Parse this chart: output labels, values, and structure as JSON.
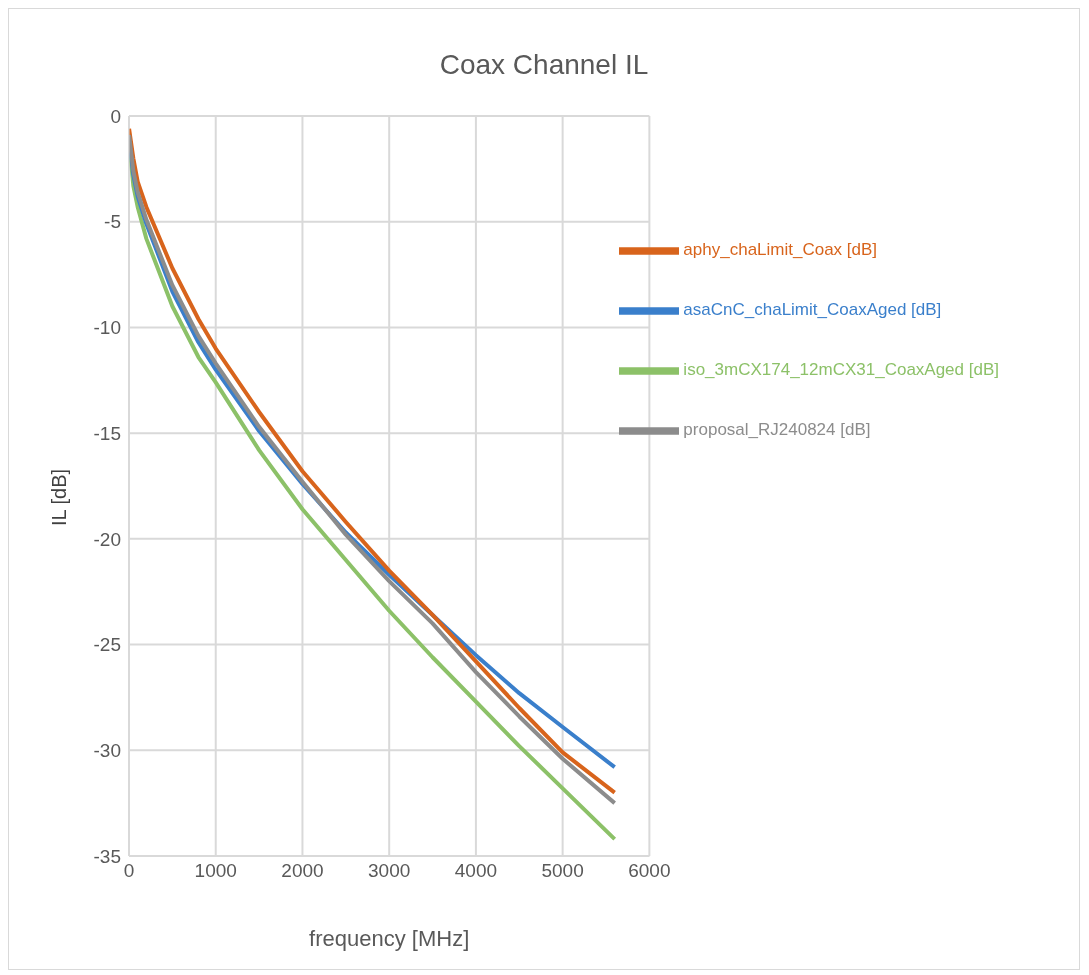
{
  "chart_data": {
    "type": "line",
    "title": "Coax Channel  IL",
    "xlabel": "frequency [MHz]",
    "ylabel": "IL [dB]",
    "x": [
      1,
      50,
      100,
      200,
      500,
      800,
      1000,
      1500,
      2000,
      2500,
      3000,
      3500,
      4000,
      4500,
      5000,
      5600
    ],
    "series": [
      {
        "name": "iso_3mCX174_12mCX31_CoaxAged [dB]",
        "color": "#8cc168",
        "values": [
          -1.2,
          -3.3,
          -4.3,
          -5.8,
          -9.0,
          -11.4,
          -12.6,
          -15.8,
          -18.6,
          -21.0,
          -23.4,
          -25.6,
          -27.7,
          -29.8,
          -31.8,
          -34.2
        ]
      },
      {
        "name": "asaCnC_chaLimit_CoaxAged [dB]",
        "color": "#3a7fcb",
        "values": [
          -1.0,
          -2.8,
          -3.8,
          -5.1,
          -8.3,
          -10.7,
          -12.0,
          -14.9,
          -17.4,
          -19.7,
          -21.7,
          -23.6,
          -25.5,
          -27.3,
          -28.9,
          -30.8
        ]
      },
      {
        "name": "aphy_chaLimit_Coax [dB]",
        "color": "#d8641c",
        "values": [
          -0.6,
          -2.0,
          -3.1,
          -4.3,
          -7.2,
          -9.6,
          -11.0,
          -14.0,
          -16.8,
          -19.2,
          -21.5,
          -23.6,
          -25.8,
          -28.0,
          -30.1,
          -32.0
        ]
      },
      {
        "name": "proposal_RJ240824 [dB]",
        "color": "#8c8c8c",
        "values": [
          -0.9,
          -2.6,
          -3.6,
          -4.9,
          -8.0,
          -10.4,
          -11.7,
          -14.7,
          -17.3,
          -19.8,
          -22.0,
          -24.0,
          -26.3,
          -28.4,
          -30.4,
          -32.5
        ]
      }
    ],
    "xlim": [
      0,
      6000
    ],
    "xticks": [
      0,
      1000,
      2000,
      3000,
      4000,
      5000,
      6000
    ],
    "ylim": [
      -35,
      0
    ],
    "yticks": [
      -35,
      -30,
      -25,
      -20,
      -15,
      -10,
      -5,
      0
    ],
    "grid": true,
    "legend": "top right",
    "marker": "none",
    "line_style": "solid"
  }
}
